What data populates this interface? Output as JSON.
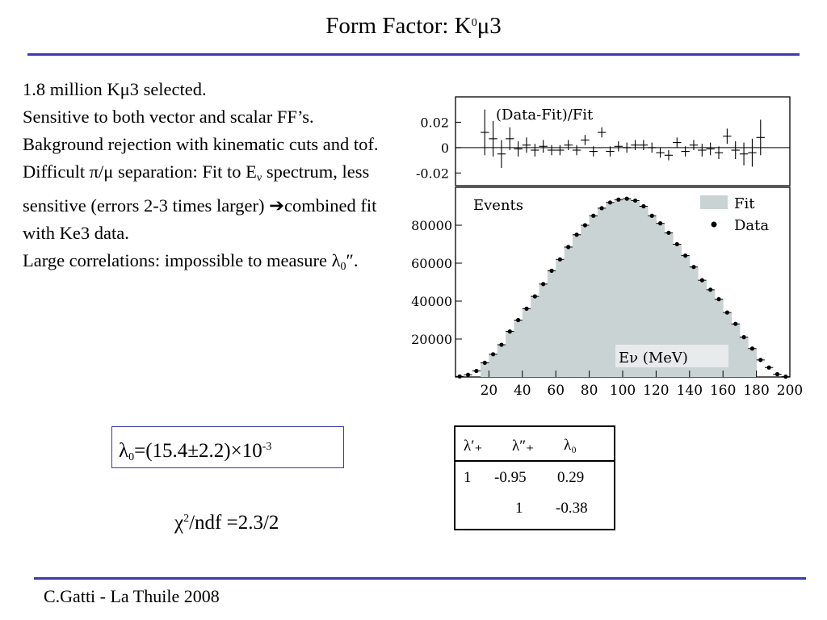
{
  "title": {
    "main": "Form Factor: K",
    "sup": "0",
    "rest": "μ3"
  },
  "bullets": {
    "line1": "1.8 million Kμ3 selected.",
    "line2": "Sensitive to both vector and scalar FF’s.",
    "line3": "Bakground rejection with kinematic cuts and tof.",
    "line4_a": "Difficult π/μ separation: Fit to E",
    "line4_sub": "ν",
    "line4_b": " spectrum, less sensitive (errors 2-3 times larger) ",
    "line4_arrow": "➔",
    "line4_c": "combined fit with Ke3 data.",
    "line5_a": "Large correlations: impossible to measure λ",
    "line5_sub": "0",
    "line5_b": "″."
  },
  "result": {
    "lambda": "λ",
    "lambda_sub": "0",
    "value": "=(15.4±2.2)×10",
    "exp": "-3"
  },
  "chi2": {
    "chi": "χ",
    "sup": "2",
    "rest": "/ndf =2.3/2"
  },
  "correlation_table": {
    "headers": [
      "λ′₊",
      "λ″₊",
      "λ₀"
    ],
    "rows": [
      [
        "1",
        "-0.95",
        "0.29"
      ],
      [
        "",
        "1",
        "-0.38"
      ]
    ]
  },
  "footer": "C.Gatti - La Thuile 2008",
  "chart_data": [
    {
      "type": "bar",
      "panel": "main",
      "xlabel": "Eν (MeV)",
      "ylabel": "Events",
      "x_ticks": [
        20,
        40,
        60,
        80,
        100,
        120,
        140,
        160,
        180,
        200
      ],
      "y_ticks": [
        20000,
        40000,
        60000,
        80000
      ],
      "ylim": [
        0,
        100000
      ],
      "xlim": [
        0,
        200
      ],
      "legend": {
        "position": "top-right",
        "entries": [
          "Fit",
          "Data"
        ]
      },
      "fit_color": "#c9d3d3",
      "bin_width": 5,
      "x": [
        2.5,
        7.5,
        12.5,
        17.5,
        22.5,
        27.5,
        32.5,
        37.5,
        42.5,
        47.5,
        52.5,
        57.5,
        62.5,
        67.5,
        72.5,
        77.5,
        82.5,
        87.5,
        92.5,
        97.5,
        102.5,
        107.5,
        112.5,
        117.5,
        122.5,
        127.5,
        132.5,
        137.5,
        142.5,
        147.5,
        152.5,
        157.5,
        162.5,
        167.5,
        172.5,
        177.5,
        182.5,
        187.5,
        192.5,
        197.5
      ],
      "series": [
        {
          "name": "Fit",
          "values": [
            0,
            0,
            0,
            8000,
            12000,
            17000,
            24000,
            30000,
            36000,
            42500,
            49000,
            56000,
            62000,
            68500,
            75000,
            80000,
            85000,
            89000,
            92000,
            93500,
            94000,
            93000,
            90000,
            85000,
            81000,
            76000,
            70000,
            64000,
            58000,
            51000,
            46000,
            41000,
            34000,
            28000,
            21000,
            15000,
            0,
            0,
            0,
            0
          ]
        },
        {
          "name": "Data",
          "values": [
            300,
            1200,
            3200,
            7500,
            12000,
            17000,
            24000,
            30000,
            36000,
            42500,
            49000,
            56000,
            62000,
            68500,
            75000,
            80000,
            85000,
            89000,
            92000,
            93500,
            94000,
            93000,
            90000,
            85000,
            81000,
            76000,
            70000,
            64000,
            58000,
            51000,
            46000,
            41000,
            34000,
            28000,
            21000,
            15000,
            9000,
            5000,
            1500,
            200
          ]
        }
      ]
    },
    {
      "type": "scatter",
      "panel": "residual",
      "title": "(Data-Fit)/Fit",
      "y_ticks": [
        "0.02",
        "0",
        "-0.02"
      ],
      "ylim": [
        -0.03,
        0.04
      ],
      "xlim": [
        0,
        200
      ],
      "x": [
        17.5,
        22.5,
        27.5,
        32.5,
        37.5,
        42.5,
        47.5,
        52.5,
        57.5,
        62.5,
        67.5,
        72.5,
        77.5,
        82.5,
        87.5,
        92.5,
        97.5,
        102.5,
        107.5,
        112.5,
        117.5,
        122.5,
        127.5,
        132.5,
        137.5,
        142.5,
        147.5,
        152.5,
        157.5,
        162.5,
        167.5,
        172.5,
        177.5,
        182.5
      ],
      "y": [
        0.012,
        0.007,
        -0.005,
        0.007,
        -0.001,
        0.002,
        -0.002,
        0.001,
        -0.002,
        -0.002,
        0.002,
        -0.002,
        0.006,
        -0.003,
        0.012,
        -0.003,
        0.001,
        0.0,
        0.002,
        0.002,
        0.0,
        -0.004,
        -0.006,
        0.004,
        -0.003,
        0.002,
        -0.002,
        -0.001,
        -0.004,
        0.009,
        -0.002,
        -0.005,
        -0.004,
        0.008
      ],
      "err": [
        0.018,
        0.014,
        0.011,
        0.009,
        0.006,
        0.006,
        0.005,
        0.005,
        0.004,
        0.004,
        0.004,
        0.004,
        0.004,
        0.004,
        0.004,
        0.004,
        0.004,
        0.004,
        0.004,
        0.004,
        0.004,
        0.004,
        0.004,
        0.004,
        0.004,
        0.004,
        0.005,
        0.005,
        0.005,
        0.006,
        0.007,
        0.009,
        0.011,
        0.014
      ]
    }
  ]
}
